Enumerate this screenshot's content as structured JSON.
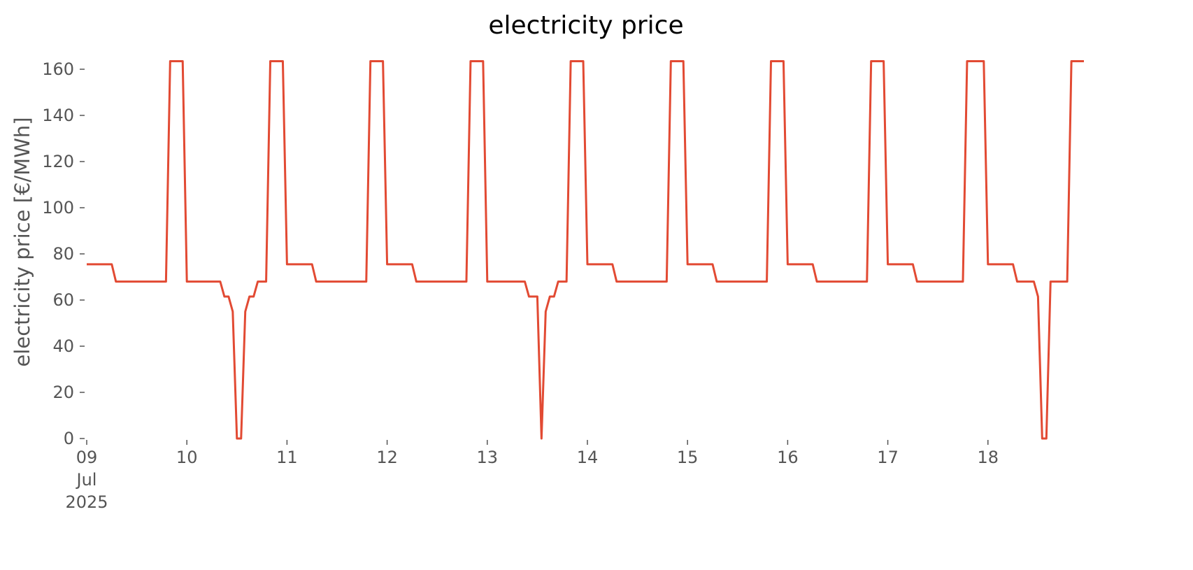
{
  "chart_data": {
    "type": "line",
    "title": "electricity price",
    "ylabel": "electricity price [€/MWh]",
    "color": "#e24a33",
    "x": [
      "2025-07-09 00:00",
      "2025-07-09 01:00",
      "2025-07-09 02:00",
      "2025-07-09 03:00",
      "2025-07-09 04:00",
      "2025-07-09 05:00",
      "2025-07-09 06:00",
      "2025-07-09 07:00",
      "2025-07-09 08:00",
      "2025-07-09 09:00",
      "2025-07-09 10:00",
      "2025-07-09 11:00",
      "2025-07-09 12:00",
      "2025-07-09 13:00",
      "2025-07-09 14:00",
      "2025-07-09 15:00",
      "2025-07-09 16:00",
      "2025-07-09 17:00",
      "2025-07-09 18:00",
      "2025-07-09 19:00",
      "2025-07-09 20:00",
      "2025-07-09 21:00",
      "2025-07-09 22:00",
      "2025-07-09 23:00",
      "2025-07-10 00:00",
      "2025-07-10 01:00",
      "2025-07-10 02:00",
      "2025-07-10 03:00",
      "2025-07-10 04:00",
      "2025-07-10 05:00",
      "2025-07-10 06:00",
      "2025-07-10 07:00",
      "2025-07-10 08:00",
      "2025-07-10 09:00",
      "2025-07-10 10:00",
      "2025-07-10 11:00",
      "2025-07-10 12:00",
      "2025-07-10 13:00",
      "2025-07-10 14:00",
      "2025-07-10 15:00",
      "2025-07-10 16:00",
      "2025-07-10 17:00",
      "2025-07-10 18:00",
      "2025-07-10 19:00",
      "2025-07-10 20:00",
      "2025-07-10 21:00",
      "2025-07-10 22:00",
      "2025-07-10 23:00",
      "2025-07-11 00:00",
      "2025-07-11 01:00",
      "2025-07-11 02:00",
      "2025-07-11 03:00",
      "2025-07-11 04:00",
      "2025-07-11 05:00",
      "2025-07-11 06:00",
      "2025-07-11 07:00",
      "2025-07-11 08:00",
      "2025-07-11 09:00",
      "2025-07-11 10:00",
      "2025-07-11 11:00",
      "2025-07-11 12:00",
      "2025-07-11 13:00",
      "2025-07-11 14:00",
      "2025-07-11 15:00",
      "2025-07-11 16:00",
      "2025-07-11 17:00",
      "2025-07-11 18:00",
      "2025-07-11 19:00",
      "2025-07-11 20:00",
      "2025-07-11 21:00",
      "2025-07-11 22:00",
      "2025-07-11 23:00",
      "2025-07-12 00:00",
      "2025-07-12 01:00",
      "2025-07-12 02:00",
      "2025-07-12 03:00",
      "2025-07-12 04:00",
      "2025-07-12 05:00",
      "2025-07-12 06:00",
      "2025-07-12 07:00",
      "2025-07-12 08:00",
      "2025-07-12 09:00",
      "2025-07-12 10:00",
      "2025-07-12 11:00",
      "2025-07-12 12:00",
      "2025-07-12 13:00",
      "2025-07-12 14:00",
      "2025-07-12 15:00",
      "2025-07-12 16:00",
      "2025-07-12 17:00",
      "2025-07-12 18:00",
      "2025-07-12 19:00",
      "2025-07-12 20:00",
      "2025-07-12 21:00",
      "2025-07-12 22:00",
      "2025-07-12 23:00",
      "2025-07-13 00:00",
      "2025-07-13 01:00",
      "2025-07-13 02:00",
      "2025-07-13 03:00",
      "2025-07-13 04:00",
      "2025-07-13 05:00",
      "2025-07-13 06:00",
      "2025-07-13 07:00",
      "2025-07-13 08:00",
      "2025-07-13 09:00",
      "2025-07-13 10:00",
      "2025-07-13 11:00",
      "2025-07-13 12:00",
      "2025-07-13 13:00",
      "2025-07-13 14:00",
      "2025-07-13 15:00",
      "2025-07-13 16:00",
      "2025-07-13 17:00",
      "2025-07-13 18:00",
      "2025-07-13 19:00",
      "2025-07-13 20:00",
      "2025-07-13 21:00",
      "2025-07-13 22:00",
      "2025-07-13 23:00",
      "2025-07-14 00:00",
      "2025-07-14 01:00",
      "2025-07-14 02:00",
      "2025-07-14 03:00",
      "2025-07-14 04:00",
      "2025-07-14 05:00",
      "2025-07-14 06:00",
      "2025-07-14 07:00",
      "2025-07-14 08:00",
      "2025-07-14 09:00",
      "2025-07-14 10:00",
      "2025-07-14 11:00",
      "2025-07-14 12:00",
      "2025-07-14 13:00",
      "2025-07-14 14:00",
      "2025-07-14 15:00",
      "2025-07-14 16:00",
      "2025-07-14 17:00",
      "2025-07-14 18:00",
      "2025-07-14 19:00",
      "2025-07-14 20:00",
      "2025-07-14 21:00",
      "2025-07-14 22:00",
      "2025-07-14 23:00",
      "2025-07-15 00:00",
      "2025-07-15 01:00",
      "2025-07-15 02:00",
      "2025-07-15 03:00",
      "2025-07-15 04:00",
      "2025-07-15 05:00",
      "2025-07-15 06:00",
      "2025-07-15 07:00",
      "2025-07-15 08:00",
      "2025-07-15 09:00",
      "2025-07-15 10:00",
      "2025-07-15 11:00",
      "2025-07-15 12:00",
      "2025-07-15 13:00",
      "2025-07-15 14:00",
      "2025-07-15 15:00",
      "2025-07-15 16:00",
      "2025-07-15 17:00",
      "2025-07-15 18:00",
      "2025-07-15 19:00",
      "2025-07-15 20:00",
      "2025-07-15 21:00",
      "2025-07-15 22:00",
      "2025-07-15 23:00",
      "2025-07-16 00:00",
      "2025-07-16 01:00",
      "2025-07-16 02:00",
      "2025-07-16 03:00",
      "2025-07-16 04:00",
      "2025-07-16 05:00",
      "2025-07-16 06:00",
      "2025-07-16 07:00",
      "2025-07-16 08:00",
      "2025-07-16 09:00",
      "2025-07-16 10:00",
      "2025-07-16 11:00",
      "2025-07-16 12:00",
      "2025-07-16 13:00",
      "2025-07-16 14:00",
      "2025-07-16 15:00",
      "2025-07-16 16:00",
      "2025-07-16 17:00",
      "2025-07-16 18:00",
      "2025-07-16 19:00",
      "2025-07-16 20:00",
      "2025-07-16 21:00",
      "2025-07-16 22:00",
      "2025-07-16 23:00",
      "2025-07-17 00:00",
      "2025-07-17 01:00",
      "2025-07-17 02:00",
      "2025-07-17 03:00",
      "2025-07-17 04:00",
      "2025-07-17 05:00",
      "2025-07-17 06:00",
      "2025-07-17 07:00",
      "2025-07-17 08:00",
      "2025-07-17 09:00",
      "2025-07-17 10:00",
      "2025-07-17 11:00",
      "2025-07-17 12:00",
      "2025-07-17 13:00",
      "2025-07-17 14:00",
      "2025-07-17 15:00",
      "2025-07-17 16:00",
      "2025-07-17 17:00",
      "2025-07-17 18:00",
      "2025-07-17 19:00",
      "2025-07-17 20:00",
      "2025-07-17 21:00",
      "2025-07-17 22:00",
      "2025-07-17 23:00",
      "2025-07-18 00:00",
      "2025-07-18 01:00",
      "2025-07-18 02:00",
      "2025-07-18 03:00",
      "2025-07-18 04:00",
      "2025-07-18 05:00",
      "2025-07-18 06:00",
      "2025-07-18 07:00",
      "2025-07-18 08:00",
      "2025-07-18 09:00",
      "2025-07-18 10:00",
      "2025-07-18 11:00",
      "2025-07-18 12:00",
      "2025-07-18 13:00",
      "2025-07-18 14:00",
      "2025-07-18 15:00",
      "2025-07-18 16:00",
      "2025-07-18 17:00",
      "2025-07-18 18:00",
      "2025-07-18 19:00",
      "2025-07-18 20:00",
      "2025-07-18 21:00",
      "2025-07-18 22:00",
      "2025-07-18 23:00"
    ],
    "values": [
      75.5,
      75.5,
      75.5,
      75.5,
      75.5,
      75.5,
      75.5,
      68,
      68,
      68,
      68,
      68,
      68,
      68,
      68,
      68,
      68,
      68,
      68,
      68,
      163.5,
      163.5,
      163.5,
      163.5,
      68,
      68,
      68,
      68,
      68,
      68,
      68,
      68,
      68,
      61.5,
      61.5,
      55,
      0,
      0,
      55,
      61.5,
      61.5,
      68,
      68,
      68,
      163.5,
      163.5,
      163.5,
      163.5,
      75.5,
      75.5,
      75.5,
      75.5,
      75.5,
      75.5,
      75.5,
      68,
      68,
      68,
      68,
      68,
      68,
      68,
      68,
      68,
      68,
      68,
      68,
      68,
      163.5,
      163.5,
      163.5,
      163.5,
      75.5,
      75.5,
      75.5,
      75.5,
      75.5,
      75.5,
      75.5,
      68,
      68,
      68,
      68,
      68,
      68,
      68,
      68,
      68,
      68,
      68,
      68,
      68,
      163.5,
      163.5,
      163.5,
      163.5,
      68,
      68,
      68,
      68,
      68,
      68,
      68,
      68,
      68,
      68,
      61.5,
      61.5,
      61.5,
      0,
      55,
      61.5,
      61.5,
      68,
      68,
      68,
      163.5,
      163.5,
      163.5,
      163.5,
      75.5,
      75.5,
      75.5,
      75.5,
      75.5,
      75.5,
      75.5,
      68,
      68,
      68,
      68,
      68,
      68,
      68,
      68,
      68,
      68,
      68,
      68,
      68,
      163.5,
      163.5,
      163.5,
      163.5,
      75.5,
      75.5,
      75.5,
      75.5,
      75.5,
      75.5,
      75.5,
      68,
      68,
      68,
      68,
      68,
      68,
      68,
      68,
      68,
      68,
      68,
      68,
      68,
      163.5,
      163.5,
      163.5,
      163.5,
      75.5,
      75.5,
      75.5,
      75.5,
      75.5,
      75.5,
      75.5,
      68,
      68,
      68,
      68,
      68,
      68,
      68,
      68,
      68,
      68,
      68,
      68,
      68,
      163.5,
      163.5,
      163.5,
      163.5,
      75.5,
      75.5,
      75.5,
      75.5,
      75.5,
      75.5,
      75.5,
      68,
      68,
      68,
      68,
      68,
      68,
      68,
      68,
      68,
      68,
      68,
      68,
      163.5,
      163.5,
      163.5,
      163.5,
      163.5,
      75.5,
      75.5,
      75.5,
      75.5,
      75.5,
      75.5,
      75.5,
      68,
      68,
      68,
      68,
      68,
      61.5,
      0,
      0,
      68,
      68,
      68,
      68,
      68,
      163.5,
      163.5,
      163.5,
      163.5
    ],
    "xlim": [
      "2025-07-09 00:00",
      "2025-07-18 23:00"
    ],
    "xticks": [
      {
        "value": "2025-07-09 00:00",
        "label": "09\nJul\n2025"
      },
      {
        "value": "2025-07-10 00:00",
        "label": "10"
      },
      {
        "value": "2025-07-11 00:00",
        "label": "11"
      },
      {
        "value": "2025-07-12 00:00",
        "label": "12"
      },
      {
        "value": "2025-07-13 00:00",
        "label": "13"
      },
      {
        "value": "2025-07-14 00:00",
        "label": "14"
      },
      {
        "value": "2025-07-15 00:00",
        "label": "15"
      },
      {
        "value": "2025-07-16 00:00",
        "label": "16"
      },
      {
        "value": "2025-07-17 00:00",
        "label": "17"
      },
      {
        "value": "2025-07-18 00:00",
        "label": "18"
      }
    ],
    "ylim": [
      0,
      170
    ],
    "yticks": [
      0,
      20,
      40,
      60,
      80,
      100,
      120,
      140,
      160
    ],
    "grid": false
  }
}
